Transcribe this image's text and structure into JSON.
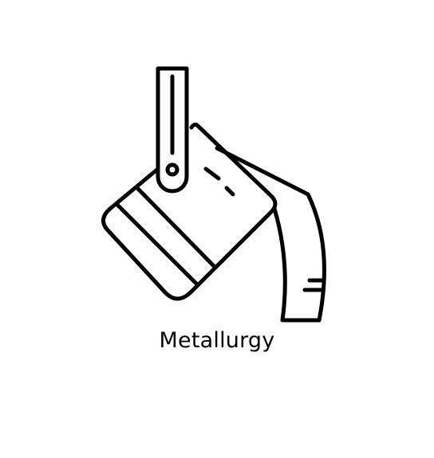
{
  "icon": {
    "name": "ladle-pouring-icon",
    "stroke_color": "#000000",
    "background": "#ffffff"
  },
  "caption": {
    "text": "Metallurgy"
  }
}
